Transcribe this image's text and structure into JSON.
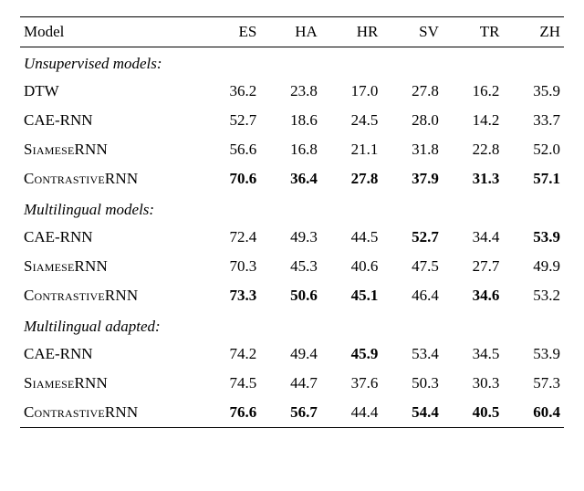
{
  "header": {
    "model": "Model",
    "cols": [
      "ES",
      "HA",
      "HR",
      "SV",
      "TR",
      "ZH"
    ]
  },
  "sections": [
    {
      "title": "Unsupervised models:",
      "rows": [
        {
          "label": "DTW",
          "smallcaps": false,
          "cells": [
            {
              "v": "36.2",
              "b": false
            },
            {
              "v": "23.8",
              "b": false
            },
            {
              "v": "17.0",
              "b": false
            },
            {
              "v": "27.8",
              "b": false
            },
            {
              "v": "16.2",
              "b": false
            },
            {
              "v": "35.9",
              "b": false
            }
          ]
        },
        {
          "label": "CAE-RNN",
          "smallcaps": false,
          "cells": [
            {
              "v": "52.7",
              "b": false
            },
            {
              "v": "18.6",
              "b": false
            },
            {
              "v": "24.5",
              "b": false
            },
            {
              "v": "28.0",
              "b": false
            },
            {
              "v": "14.2",
              "b": false
            },
            {
              "v": "33.7",
              "b": false
            }
          ]
        },
        {
          "label": "SiameseRNN",
          "smallcaps": true,
          "cells": [
            {
              "v": "56.6",
              "b": false
            },
            {
              "v": "16.8",
              "b": false
            },
            {
              "v": "21.1",
              "b": false
            },
            {
              "v": "31.8",
              "b": false
            },
            {
              "v": "22.8",
              "b": false
            },
            {
              "v": "52.0",
              "b": false
            }
          ]
        },
        {
          "label": "ContrastiveRNN",
          "smallcaps": true,
          "cells": [
            {
              "v": "70.6",
              "b": true
            },
            {
              "v": "36.4",
              "b": true
            },
            {
              "v": "27.8",
              "b": true
            },
            {
              "v": "37.9",
              "b": true
            },
            {
              "v": "31.3",
              "b": true
            },
            {
              "v": "57.1",
              "b": true
            }
          ]
        }
      ]
    },
    {
      "title": "Multilingual models:",
      "rows": [
        {
          "label": "CAE-RNN",
          "smallcaps": false,
          "cells": [
            {
              "v": "72.4",
              "b": false
            },
            {
              "v": "49.3",
              "b": false
            },
            {
              "v": "44.5",
              "b": false
            },
            {
              "v": "52.7",
              "b": true
            },
            {
              "v": "34.4",
              "b": false
            },
            {
              "v": "53.9",
              "b": true
            }
          ]
        },
        {
          "label": "SiameseRNN",
          "smallcaps": true,
          "cells": [
            {
              "v": "70.3",
              "b": false
            },
            {
              "v": "45.3",
              "b": false
            },
            {
              "v": "40.6",
              "b": false
            },
            {
              "v": "47.5",
              "b": false
            },
            {
              "v": "27.7",
              "b": false
            },
            {
              "v": "49.9",
              "b": false
            }
          ]
        },
        {
          "label": "ContrastiveRNN",
          "smallcaps": true,
          "cells": [
            {
              "v": "73.3",
              "b": true
            },
            {
              "v": "50.6",
              "b": true
            },
            {
              "v": "45.1",
              "b": true
            },
            {
              "v": "46.4",
              "b": false
            },
            {
              "v": "34.6",
              "b": true
            },
            {
              "v": "53.2",
              "b": false
            }
          ]
        }
      ]
    },
    {
      "title": "Multilingual adapted:",
      "rows": [
        {
          "label": "CAE-RNN",
          "smallcaps": false,
          "cells": [
            {
              "v": "74.2",
              "b": false
            },
            {
              "v": "49.4",
              "b": false
            },
            {
              "v": "45.9",
              "b": true
            },
            {
              "v": "53.4",
              "b": false
            },
            {
              "v": "34.5",
              "b": false
            },
            {
              "v": "53.9",
              "b": false
            }
          ]
        },
        {
          "label": "SiameseRNN",
          "smallcaps": true,
          "cells": [
            {
              "v": "74.5",
              "b": false
            },
            {
              "v": "44.7",
              "b": false
            },
            {
              "v": "37.6",
              "b": false
            },
            {
              "v": "50.3",
              "b": false
            },
            {
              "v": "30.3",
              "b": false
            },
            {
              "v": "57.3",
              "b": false
            }
          ]
        },
        {
          "label": "ContrastiveRNN",
          "smallcaps": true,
          "cells": [
            {
              "v": "76.6",
              "b": true
            },
            {
              "v": "56.7",
              "b": true
            },
            {
              "v": "44.4",
              "b": false
            },
            {
              "v": "54.4",
              "b": true
            },
            {
              "v": "40.5",
              "b": true
            },
            {
              "v": "60.4",
              "b": true
            }
          ]
        }
      ]
    }
  ]
}
